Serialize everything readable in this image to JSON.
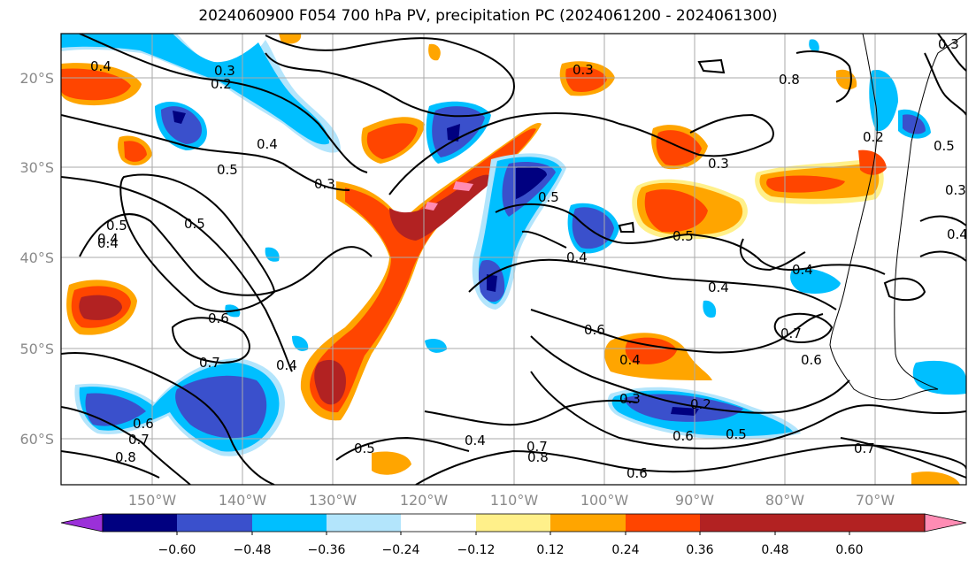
{
  "title": "2024060900 F054 700 hPa PV, precipitation PC (2024061200 - 2024061300)",
  "map": {
    "lon_ticks": [
      "150°W",
      "140°W",
      "130°W",
      "120°W",
      "110°W",
      "100°W",
      "90°W",
      "80°W",
      "70°W"
    ],
    "lat_ticks": [
      "20°S",
      "30°S",
      "40°S",
      "50°S",
      "60°S"
    ],
    "grid": true
  },
  "contour_labels": [
    "0.4",
    "0.2",
    "0.3",
    "0.4",
    "0.5",
    "0.5",
    "0.3",
    "0.4",
    "0.5",
    "0.4",
    "0.6",
    "0.7",
    "0.4",
    "0.6",
    "0.7",
    "0.8",
    "0.5",
    "0.4",
    "0.7",
    "0.8",
    "0.6",
    "0.3",
    "0.5",
    "0.3",
    "0.4",
    "0.5",
    "0.4",
    "0.6",
    "0.4",
    "0.3",
    "0.2",
    "0.6",
    "0.5",
    "0.7",
    "0.6",
    "0.4",
    "0.2",
    "0.5",
    "0.3",
    "0.4",
    "0.7",
    "0.8",
    "0.3"
  ],
  "colorbar": {
    "tick_labels": [
      "−0.60",
      "−0.48",
      "−0.36",
      "−0.24",
      "−0.12",
      "0.12",
      "0.24",
      "0.36",
      "0.48",
      "0.60"
    ],
    "colors": [
      "#9b30d9",
      "#000080",
      "#3a50cc",
      "#00bfff",
      "#b3e5fc",
      "#ffffff",
      "#fff08a",
      "#ffa500",
      "#ff4500",
      "#b22222",
      "#ff8cb4"
    ]
  }
}
